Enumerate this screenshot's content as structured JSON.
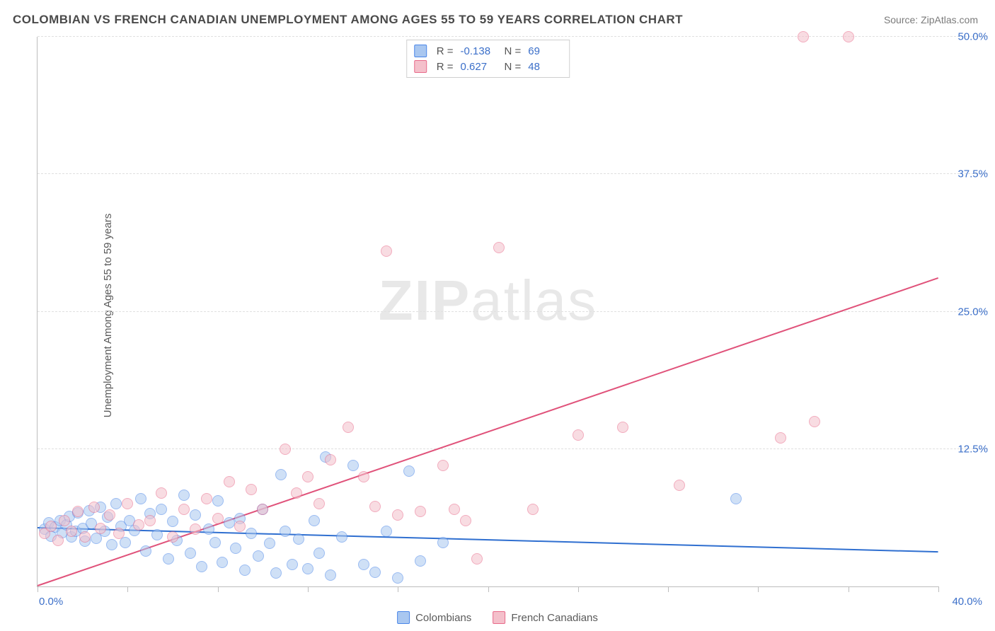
{
  "title": "COLOMBIAN VS FRENCH CANADIAN UNEMPLOYMENT AMONG AGES 55 TO 59 YEARS CORRELATION CHART",
  "source_prefix": "Source: ",
  "source_name": "ZipAtlas.com",
  "y_axis_label": "Unemployment Among Ages 55 to 59 years",
  "watermark_bold": "ZIP",
  "watermark_thin": "atlas",
  "chart": {
    "type": "scatter",
    "background_color": "#ffffff",
    "grid_color": "#e0e0e0",
    "axis_color": "#bdbdbd",
    "xlim": [
      0,
      40
    ],
    "ylim": [
      0,
      50
    ],
    "y_ticks": [
      12.5,
      25.0,
      37.5,
      50.0
    ],
    "y_tick_labels": [
      "12.5%",
      "25.0%",
      "37.5%",
      "50.0%"
    ],
    "x_ticks": [
      0,
      4,
      8,
      12,
      16,
      20,
      24,
      28,
      32,
      36,
      40
    ],
    "x_tick_label_min": "0.0%",
    "x_tick_label_max": "40.0%",
    "tick_label_color": "#3b6fc9",
    "tick_label_fontsize": 15,
    "marker_radius": 8,
    "marker_opacity": 0.55,
    "marker_border_width": 1
  },
  "series": [
    {
      "name": "Colombians",
      "fill": "#a9c7f0",
      "stroke": "#4a86e8",
      "line_color": "#2f6fd0",
      "R": "-0.138",
      "N": "69",
      "trend": {
        "x1": 0,
        "y1": 5.3,
        "x2": 40,
        "y2": 3.1
      },
      "points": [
        [
          0.3,
          5.2
        ],
        [
          0.5,
          5.8
        ],
        [
          0.6,
          4.6
        ],
        [
          0.8,
          5.4
        ],
        [
          1.0,
          6.0
        ],
        [
          1.1,
          4.9
        ],
        [
          1.3,
          5.6
        ],
        [
          1.4,
          6.4
        ],
        [
          1.5,
          4.5
        ],
        [
          1.7,
          5.0
        ],
        [
          1.8,
          6.7
        ],
        [
          2.0,
          5.3
        ],
        [
          2.1,
          4.1
        ],
        [
          2.3,
          6.9
        ],
        [
          2.4,
          5.7
        ],
        [
          2.6,
          4.4
        ],
        [
          2.8,
          7.2
        ],
        [
          3.0,
          5.0
        ],
        [
          3.1,
          6.3
        ],
        [
          3.3,
          3.8
        ],
        [
          3.5,
          7.5
        ],
        [
          3.7,
          5.5
        ],
        [
          3.9,
          4.0
        ],
        [
          4.1,
          6.0
        ],
        [
          4.3,
          5.1
        ],
        [
          4.6,
          8.0
        ],
        [
          4.8,
          3.2
        ],
        [
          5.0,
          6.6
        ],
        [
          5.3,
          4.7
        ],
        [
          5.5,
          7.0
        ],
        [
          5.8,
          2.5
        ],
        [
          6.0,
          5.9
        ],
        [
          6.2,
          4.2
        ],
        [
          6.5,
          8.3
        ],
        [
          6.8,
          3.0
        ],
        [
          7.0,
          6.5
        ],
        [
          7.3,
          1.8
        ],
        [
          7.6,
          5.2
        ],
        [
          7.9,
          4.0
        ],
        [
          8.0,
          7.8
        ],
        [
          8.2,
          2.2
        ],
        [
          8.5,
          5.8
        ],
        [
          8.8,
          3.5
        ],
        [
          9.0,
          6.2
        ],
        [
          9.2,
          1.5
        ],
        [
          9.5,
          4.8
        ],
        [
          9.8,
          2.8
        ],
        [
          10.0,
          7.0
        ],
        [
          10.3,
          3.9
        ],
        [
          10.6,
          1.2
        ],
        [
          10.8,
          10.2
        ],
        [
          11.0,
          5.0
        ],
        [
          11.3,
          2.0
        ],
        [
          11.6,
          4.3
        ],
        [
          12.0,
          1.6
        ],
        [
          12.3,
          6.0
        ],
        [
          12.5,
          3.0
        ],
        [
          12.8,
          11.8
        ],
        [
          13.0,
          1.0
        ],
        [
          13.5,
          4.5
        ],
        [
          14.0,
          11.0
        ],
        [
          14.5,
          2.0
        ],
        [
          15.0,
          1.3
        ],
        [
          15.5,
          5.0
        ],
        [
          16.0,
          0.8
        ],
        [
          16.5,
          10.5
        ],
        [
          17.0,
          2.3
        ],
        [
          18.0,
          4.0
        ],
        [
          31.0,
          8.0
        ]
      ]
    },
    {
      "name": "French Canadians",
      "fill": "#f4c0cb",
      "stroke": "#e86a8a",
      "line_color": "#e0527a",
      "R": "0.627",
      "N": "48",
      "trend": {
        "x1": 0,
        "y1": 0.0,
        "x2": 40,
        "y2": 28.0
      },
      "points": [
        [
          0.3,
          4.8
        ],
        [
          0.6,
          5.5
        ],
        [
          0.9,
          4.2
        ],
        [
          1.2,
          6.0
        ],
        [
          1.5,
          5.0
        ],
        [
          1.8,
          6.8
        ],
        [
          2.1,
          4.5
        ],
        [
          2.5,
          7.2
        ],
        [
          2.8,
          5.3
        ],
        [
          3.2,
          6.5
        ],
        [
          3.6,
          4.8
        ],
        [
          4.0,
          7.5
        ],
        [
          4.5,
          5.6
        ],
        [
          5.0,
          6.0
        ],
        [
          5.5,
          8.5
        ],
        [
          6.0,
          4.5
        ],
        [
          6.5,
          7.0
        ],
        [
          7.0,
          5.2
        ],
        [
          7.5,
          8.0
        ],
        [
          8.0,
          6.2
        ],
        [
          8.5,
          9.5
        ],
        [
          9.0,
          5.5
        ],
        [
          9.5,
          8.8
        ],
        [
          10.0,
          7.0
        ],
        [
          11.0,
          12.5
        ],
        [
          11.5,
          8.5
        ],
        [
          12.0,
          10.0
        ],
        [
          12.5,
          7.5
        ],
        [
          13.0,
          11.5
        ],
        [
          13.8,
          14.5
        ],
        [
          14.5,
          10.0
        ],
        [
          15.0,
          7.3
        ],
        [
          15.5,
          30.5
        ],
        [
          16.0,
          6.5
        ],
        [
          17.0,
          6.8
        ],
        [
          18.0,
          11.0
        ],
        [
          18.5,
          7.0
        ],
        [
          19.0,
          6.0
        ],
        [
          19.5,
          2.5
        ],
        [
          20.5,
          30.8
        ],
        [
          22.0,
          7.0
        ],
        [
          24.0,
          13.8
        ],
        [
          26.0,
          14.5
        ],
        [
          28.5,
          9.2
        ],
        [
          33.0,
          13.5
        ],
        [
          34.0,
          50.8
        ],
        [
          34.5,
          15.0
        ],
        [
          36.0,
          50.8
        ]
      ]
    }
  ],
  "stats_labels": {
    "R": "R =",
    "N": "N ="
  },
  "legend_labels": [
    "Colombians",
    "French Canadians"
  ]
}
